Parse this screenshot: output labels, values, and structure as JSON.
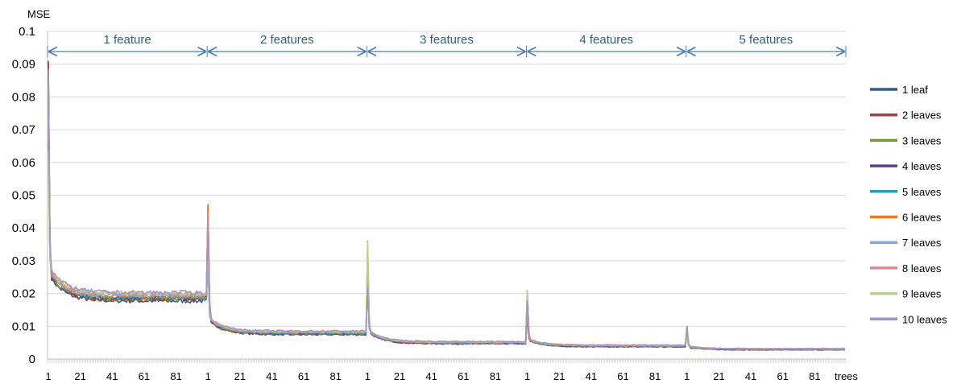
{
  "chart_data": {
    "type": "line",
    "ylabel": "MSE",
    "xlabel": "trees",
    "ylim": [
      0,
      0.1
    ],
    "yticks": [
      0,
      0.01,
      0.02,
      0.03,
      0.04,
      0.05,
      0.06,
      0.07,
      0.08,
      0.09,
      0.1
    ],
    "ytick_labels": [
      "0",
      "0.01",
      "0.02",
      "0.03",
      "0.04",
      "0.05",
      "0.06",
      "0.07",
      "0.08",
      "0.09",
      "0.1"
    ],
    "grid": "horizontal",
    "legend_position": "right",
    "trees_per_group": 100,
    "xtick_labels": [
      "1",
      "21",
      "41",
      "61",
      "81"
    ],
    "groups": [
      {
        "label": "1 feature",
        "peak": 0.091,
        "plateau": 0.019
      },
      {
        "label": "2 features",
        "peak": 0.047,
        "plateau": 0.008
      },
      {
        "label": "3 features",
        "peak": 0.036,
        "plateau": 0.005
      },
      {
        "label": "4 features",
        "peak": 0.021,
        "plateau": 0.004
      },
      {
        "label": "5 features",
        "peak": 0.01,
        "plateau": 0.003
      }
    ],
    "series": [
      {
        "name": "1 leaf",
        "color": "#2e5f8c"
      },
      {
        "name": "2 leaves",
        "color": "#b03a36"
      },
      {
        "name": "3 leaves",
        "color": "#6f9a34"
      },
      {
        "name": "4 leaves",
        "color": "#5f3f8a"
      },
      {
        "name": "5 leaves",
        "color": "#2e9bb5"
      },
      {
        "name": "6 leaves",
        "color": "#e07e2a"
      },
      {
        "name": "7 leaves",
        "color": "#89a6d6"
      },
      {
        "name": "8 leaves",
        "color": "#dc8c8a"
      },
      {
        "name": "9 leaves",
        "color": "#b7d28c"
      },
      {
        "name": "10 leaves",
        "color": "#a592c4"
      }
    ],
    "colors": {
      "grid": "#d9d9d9",
      "axis": "#bfbfbf",
      "arrow": "#4a7ebb",
      "group_text": "#2f5f7f"
    }
  }
}
